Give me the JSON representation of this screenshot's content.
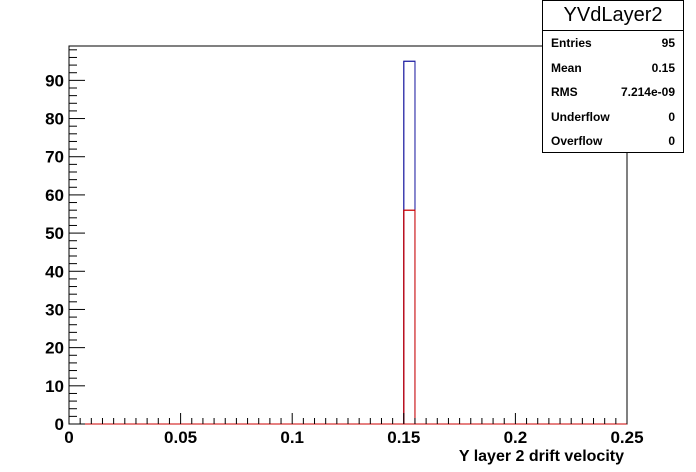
{
  "chart_data": {
    "type": "bar",
    "xlabel": "Y layer 2 drift velocity",
    "ylabel": "",
    "xlim": [
      0,
      0.25
    ],
    "ylim": [
      0,
      99
    ],
    "x_ticks": [
      0,
      0.05,
      0.1,
      0.15,
      0.2,
      0.25
    ],
    "x_tick_labels": [
      "0",
      "0.05",
      "0.1",
      "0.15",
      "0.2",
      "0.25"
    ],
    "y_ticks": [
      0,
      10,
      20,
      30,
      40,
      50,
      60,
      70,
      80,
      90
    ],
    "y_tick_labels": [
      "0",
      "10",
      "20",
      "30",
      "40",
      "50",
      "60",
      "70",
      "80",
      "90"
    ],
    "bin_width": 0.005,
    "series": [
      {
        "color": "#1a1aa0",
        "bins": [
          {
            "x_low": 0.15,
            "x_high": 0.155,
            "count": 95
          }
        ]
      },
      {
        "color": "#cc0000",
        "bins": [
          {
            "x_low": 0.15,
            "x_high": 0.155,
            "count": 56
          }
        ]
      }
    ]
  },
  "stats": {
    "title": "YVdLayer2",
    "rows": [
      {
        "label": "Entries",
        "value": "95"
      },
      {
        "label": "Mean",
        "value": "0.15"
      },
      {
        "label": "RMS",
        "value": "7.214e-09"
      },
      {
        "label": "Underflow",
        "value": "0"
      },
      {
        "label": "Overflow",
        "value": "0"
      }
    ]
  }
}
